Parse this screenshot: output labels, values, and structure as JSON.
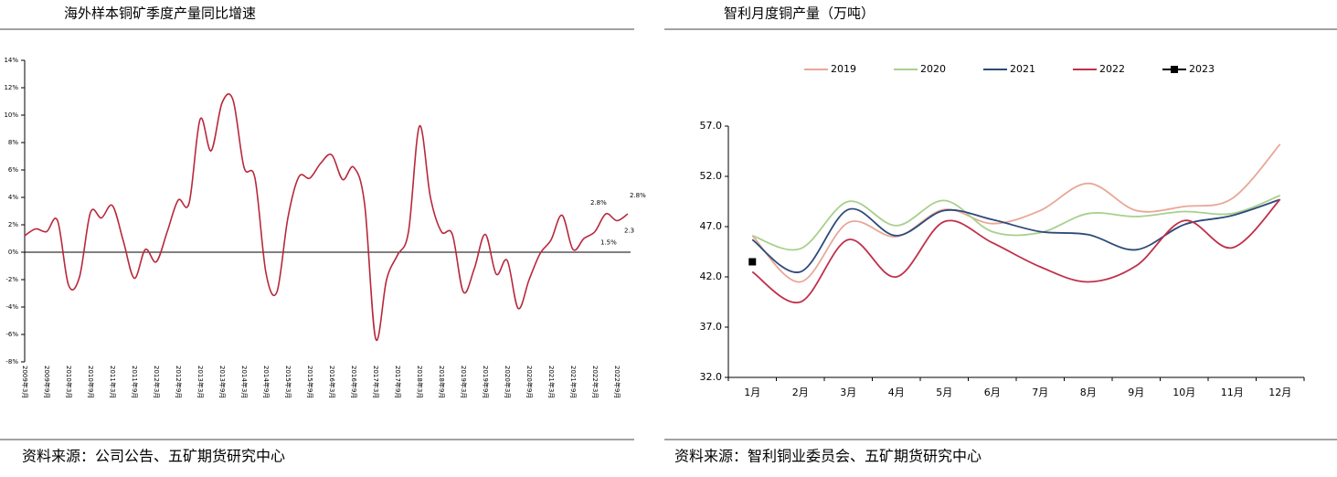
{
  "chart_data": [
    {
      "type": "line",
      "title": "海外样本铜矿季度产量同比增速",
      "categories": [
        "2009年3月",
        null,
        "2009年9月",
        null,
        "2010年3月",
        null,
        "2010年9月",
        null,
        "2011年3月",
        null,
        "2011年9月",
        null,
        "2012年3月",
        null,
        "2012年9月",
        null,
        "2013年3月",
        null,
        "2013年9月",
        null,
        "2014年3月",
        null,
        "2014年9月",
        null,
        "2015年3月",
        null,
        "2015年9月",
        null,
        "2016年3月",
        null,
        "2016年9月",
        null,
        "2017年3月",
        null,
        "2017年9月",
        null,
        "2018年3月",
        null,
        "2018年9月",
        null,
        "2019年3月",
        null,
        "2019年9月",
        null,
        "2020年3月",
        null,
        "2020年9月",
        null,
        "2021年3月",
        null,
        "2021年9月",
        null,
        "2022年3月",
        null,
        "2022年9月",
        null
      ],
      "values": [
        1.2,
        1.7,
        1.5,
        2.3,
        -2.4,
        -1.8,
        2.9,
        2.5,
        3.4,
        0.8,
        -1.9,
        0.2,
        -0.7,
        1.5,
        3.8,
        3.6,
        9.7,
        7.4,
        10.9,
        11.1,
        6.2,
        5.4,
        -1.5,
        -2.9,
        2.5,
        5.5,
        5.4,
        6.5,
        7.1,
        5.3,
        6.2,
        3.5,
        -6.3,
        -2.0,
        -0.2,
        1.5,
        9.2,
        4.0,
        1.5,
        1.3,
        -2.9,
        -1.2,
        1.3,
        -1.6,
        -0.6,
        -4.1,
        -2.0,
        -0.1,
        0.9,
        2.7,
        0.2,
        1.0,
        1.5,
        2.8,
        2.3,
        2.8
      ],
      "value_labels": [
        null,
        null,
        null,
        null,
        null,
        null,
        null,
        null,
        null,
        null,
        null,
        null,
        null,
        null,
        null,
        null,
        null,
        null,
        null,
        null,
        null,
        null,
        null,
        null,
        null,
        null,
        null,
        null,
        null,
        null,
        null,
        null,
        null,
        null,
        null,
        null,
        null,
        null,
        null,
        null,
        null,
        null,
        null,
        null,
        null,
        null,
        null,
        null,
        null,
        null,
        null,
        null,
        "1.5%",
        "2.8%",
        "2.3",
        "2.8%"
      ],
      "color": "#b8283c",
      "ylim": [
        -8,
        14
      ],
      "yticks": [
        {
          "value": -8,
          "label": "-8%"
        },
        {
          "value": -6,
          "label": "-6%"
        },
        {
          "value": -4,
          "label": "-4%"
        },
        {
          "value": -2,
          "label": "-2%"
        },
        {
          "value": 0,
          "label": "0%"
        },
        {
          "value": 2,
          "label": "2%"
        },
        {
          "value": 4,
          "label": "4%"
        },
        {
          "value": 6,
          "label": "6%"
        },
        {
          "value": 8,
          "label": "8%"
        },
        {
          "value": 10,
          "label": "10%"
        },
        {
          "value": 12,
          "label": "12%"
        },
        {
          "value": 14,
          "label": "14%"
        }
      ],
      "grid": false
    },
    {
      "type": "line",
      "title": "智利月度铜产量（万吨）",
      "categories": [
        "1月",
        "2月",
        "3月",
        "4月",
        "5月",
        "6月",
        "7月",
        "8月",
        "9月",
        "10月",
        "11月",
        "12月"
      ],
      "series": [
        {
          "name": "2019",
          "color": "#e8a898",
          "values": [
            46.1,
            41.5,
            47.4,
            46.0,
            48.7,
            47.3,
            48.6,
            51.3,
            48.6,
            49.0,
            49.8,
            55.2
          ]
        },
        {
          "name": "2020",
          "color": "#a8d08d",
          "values": [
            46.1,
            44.8,
            49.5,
            47.1,
            49.6,
            46.5,
            46.4,
            48.3,
            48.0,
            48.5,
            48.3,
            50.1
          ]
        },
        {
          "name": "2021",
          "color": "#2e4a7a",
          "values": [
            45.7,
            42.5,
            48.7,
            46.1,
            48.6,
            47.7,
            46.5,
            46.2,
            44.7,
            47.2,
            48.1,
            49.7
          ]
        },
        {
          "name": "2022",
          "color": "#c0304a",
          "values": [
            42.5,
            39.5,
            45.7,
            42.0,
            47.5,
            45.4,
            43.0,
            41.5,
            43.1,
            47.6,
            44.9,
            49.7
          ]
        },
        {
          "name": "2023",
          "color": "#000000",
          "marker": "square",
          "values": [
            43.5,
            null,
            null,
            null,
            null,
            null,
            null,
            null,
            null,
            null,
            null,
            null
          ]
        }
      ],
      "ylim": [
        32,
        57
      ],
      "yticks": [
        {
          "value": 32,
          "label": "32.0"
        },
        {
          "value": 37,
          "label": "37.0"
        },
        {
          "value": 42,
          "label": "42.0"
        },
        {
          "value": 47,
          "label": "47.0"
        },
        {
          "value": 52,
          "label": "52.0"
        },
        {
          "value": 57,
          "label": "57.0"
        }
      ],
      "legend": "top",
      "grid": false
    }
  ],
  "sources": [
    "资料来源：公司公告、五矿期货研究中心",
    "资料来源：智利铜业委员会、五矿期货研究中心"
  ]
}
